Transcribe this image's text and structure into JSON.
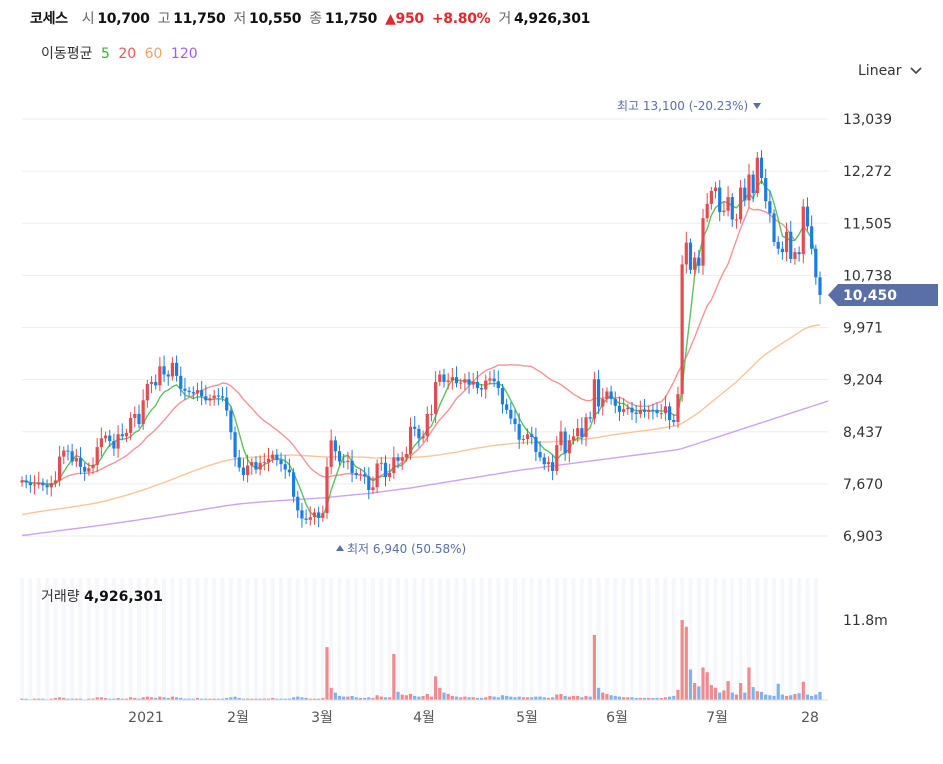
{
  "header": {
    "name": "코세스",
    "open_label": "시",
    "open": "10,700",
    "high_label": "고",
    "high": "11,750",
    "low_label": "저",
    "low": "10,550",
    "close_label": "종",
    "close": "11,750",
    "change": "▲950",
    "change_pct": "+8.80%",
    "volume_label": "거",
    "volume": "4,926,301"
  },
  "ma_legend": {
    "label": "이동평균",
    "items": [
      {
        "period": "5",
        "color": "#3caf3c"
      },
      {
        "period": "20",
        "color": "#f0585c"
      },
      {
        "period": "60",
        "color": "#f4a261"
      },
      {
        "period": "120",
        "color": "#a35bf0"
      }
    ]
  },
  "scale_selector": {
    "value": "Linear",
    "icon": "chevron-down-icon"
  },
  "volume_panel": {
    "label": "거래량",
    "value": "4,926,301",
    "tick": "11.8m"
  },
  "colors": {
    "up": "#e34b4f",
    "down": "#1c7ce6",
    "badge": "#5a6fa6",
    "grid": "#eeeeee"
  },
  "chart_data": {
    "type": "candlestick",
    "y_ticks": [
      "13,039",
      "12,272",
      "11,505",
      "10,738",
      "9,971",
      "9,204",
      "8,437",
      "7,670",
      "6,903"
    ],
    "y_range": [
      6903,
      13039
    ],
    "x_ticks": [
      "2021",
      "2월",
      "3월",
      "4월",
      "5월",
      "6월",
      "7월",
      "28"
    ],
    "last_price_badge": "10,450",
    "high_marker": {
      "label": "최고",
      "value": "13,100 (-20.23%)"
    },
    "low_marker": {
      "label": "최저",
      "value": "6,940 (50.58%)"
    },
    "close_series": [
      7720,
      7690,
      7650,
      7660,
      7690,
      7650,
      7620,
      7680,
      7720,
      8070,
      8160,
      8150,
      8000,
      8050,
      7920,
      7850,
      7900,
      7950,
      8210,
      8340,
      8380,
      8300,
      8190,
      8400,
      8370,
      8420,
      8640,
      8700,
      8550,
      8900,
      9140,
      9170,
      9120,
      9400,
      9280,
      9250,
      9450,
      9260,
      9070,
      9040,
      9020,
      9000,
      9050,
      8960,
      8900,
      8930,
      8970,
      8960,
      8940,
      8750,
      8430,
      8060,
      7910,
      7800,
      7940,
      7990,
      7880,
      7980,
      7990,
      8040,
      8100,
      8020,
      7960,
      7880,
      7840,
      7480,
      7280,
      7160,
      7140,
      7180,
      7250,
      7170,
      7240,
      7920,
      8310,
      8150,
      8000,
      7990,
      8010,
      7830,
      7800,
      7810,
      7780,
      7580,
      7620,
      7970,
      7980,
      7770,
      7830,
      8060,
      8010,
      8060,
      8110,
      8510,
      8480,
      8340,
      8370,
      8700,
      8700,
      9170,
      9280,
      9170,
      9190,
      9240,
      9150,
      9160,
      9210,
      9130,
      9170,
      9080,
      9060,
      9190,
      9220,
      9180,
      9080,
      8840,
      8760,
      8630,
      8550,
      8320,
      8330,
      8400,
      8360,
      8140,
      8060,
      7960,
      7990,
      7860,
      8240,
      8440,
      8120,
      8310,
      8370,
      8490,
      8360,
      8650,
      8630,
      9210,
      8810,
      8920,
      9030,
      8920,
      8820,
      8730,
      8770,
      8790,
      8720,
      8700,
      8760,
      8730,
      8760,
      8750,
      8710,
      8710,
      8810,
      8610,
      8580,
      8990,
      10900,
      11220,
      10820,
      11000,
      10880,
      11580,
      11790,
      11980,
      12030,
      11670,
      11690,
      11890,
      11560,
      11560,
      12030,
      11840,
      12220,
      11950,
      12470,
      12170,
      11830,
      11650,
      11230,
      11130,
      11080,
      11380,
      10980,
      11080,
      11050,
      11750,
      11460,
      11130,
      10710,
      10450
    ],
    "ma5": [
      7720,
      7705,
      7687,
      7680,
      7682,
      7672,
      7662,
      7658,
      7672,
      7752,
      7850,
      7944,
      8022,
      8086,
      8058,
      7994,
      7944,
      7934,
      7966,
      8050,
      8156,
      8236,
      8284,
      8324,
      8328,
      8336,
      8364,
      8426,
      8456,
      8562,
      8670,
      8760,
      8822,
      8946,
      9022,
      9052,
      9100,
      9128,
      9060,
      8976,
      8954,
      8926,
      8950,
      8952,
      8922,
      8904,
      8918,
      8922,
      8921,
      8885,
      8810,
      8628,
      8410,
      8190,
      8028,
      7940,
      7904,
      7910,
      7954,
      7984,
      8030,
      8038,
      8036,
      8008,
      7952,
      7832,
      7690,
      7536,
      7370,
      7252,
      7202,
      7180,
      7194,
      7352,
      7578,
      7758,
      7928,
      8074,
      8092,
      7998,
      7918,
      7890,
      7844,
      7760,
      7716,
      7752,
      7780,
      7784,
      7834,
      7922,
      7930,
      7946,
      8014,
      8150,
      8236,
      8302,
      8364,
      8472,
      8520,
      8666,
      8830,
      8966,
      9102,
      9210,
      9206,
      9184,
      9190,
      9176,
      9170,
      9144,
      9126,
      9128,
      9146,
      9146,
      9146,
      9114,
      9016,
      8898,
      8774,
      8640,
      8528,
      8446,
      8392,
      8316,
      8252,
      8180,
      8150,
      8096,
      8022,
      8100,
      8122,
      8186,
      8298,
      8346,
      8338,
      8436,
      8500,
      8680,
      8732,
      8844,
      8920,
      8978,
      8900,
      8854,
      8854,
      8806,
      8766,
      8742,
      8748,
      8760,
      8744,
      8740,
      8752,
      8740,
      8746,
      8734,
      8678,
      8688,
      9078,
      9658,
      10184,
      10742,
      11018,
      11296,
      11422,
      11622,
      11734,
      11788,
      11824,
      11808,
      11758,
      11732,
      11808,
      11856,
      11946,
      11862,
      12042,
      12130,
      12028,
      11982,
      11800,
      11566,
      11314,
      11286,
      11248,
      11256,
      11342,
      11466,
      11382,
      11280,
      11026
    ],
    "ma20": [
      7720,
      7705,
      7690,
      7683,
      7684,
      7678,
      7671,
      7672,
      7677,
      7716,
      7755,
      7787,
      7803,
      7820,
      7826,
      7826,
      7830,
      7836,
      7859,
      7887,
      7920,
      7951,
      7977,
      8014,
      8048,
      8086,
      8137,
      8190,
      8232,
      8294,
      8363,
      8414,
      8470,
      8538,
      8606,
      8676,
      8753,
      8818,
      8872,
      8907,
      8939,
      8974,
      9017,
      9045,
      9071,
      9097,
      9113,
      9126,
      9154,
      9146,
      9111,
      9055,
      8994,
      8914,
      8847,
      8784,
      8713,
      8649,
      8597,
      8556,
      8509,
      8461,
      8413,
      8359,
      8306,
      8235,
      8150,
      8073,
      7983,
      7905,
      7852,
      7810,
      7780,
      7767,
      7785,
      7793,
      7801,
      7812,
      7822,
      7817,
      7810,
      7799,
      7789,
      7761,
      7738,
      7762,
      7797,
      7828,
      7862,
      7906,
      7944,
      7988,
      8031,
      8074,
      8136,
      8189,
      8258,
      8353,
      8439,
      8530,
      8614,
      8681,
      8750,
      8833,
      8926,
      8985,
      9046,
      9114,
      9173,
      9240,
      9293,
      9339,
      9362,
      9387,
      9417,
      9420,
      9418,
      9425,
      9417,
      9418,
      9407,
      9403,
      9395,
      9356,
      9320,
      9276,
      9227,
      9190,
      9163,
      9131,
      9083,
      9040,
      8990,
      8957,
      8917,
      8898,
      8892,
      8930,
      8924,
      8932,
      8937,
      8936,
      8930,
      8944,
      8917,
      8872,
      8848,
      8819,
      8811,
      8813,
      8814,
      8833,
      8866,
      8878,
      8942,
      9058,
      9172,
      9307,
      9420,
      9538,
      9678,
      9831,
      9986,
      10143,
      10289,
      10379,
      10517,
      10666,
      10795,
      10906,
      11082,
      11255,
      11430,
      11580,
      11734,
      11703,
      11707,
      11695,
      11670,
      11634,
      11574,
      11527,
      11491,
      11427,
      11340,
      11251
    ],
    "ma60": [
      7220,
      7230,
      7240,
      7250,
      7260,
      7270,
      7280,
      7288,
      7296,
      7304,
      7312,
      7320,
      7330,
      7340,
      7350,
      7360,
      7370,
      7380,
      7392,
      7406,
      7420,
      7436,
      7452,
      7468,
      7486,
      7504,
      7522,
      7542,
      7562,
      7582,
      7602,
      7624,
      7646,
      7668,
      7690,
      7714,
      7738,
      7762,
      7786,
      7810,
      7834,
      7858,
      7880,
      7902,
      7924,
      7944,
      7964,
      7982,
      8000,
      8014,
      8026,
      8036,
      8044,
      8050,
      8056,
      8062,
      8066,
      8070,
      8074,
      8078,
      8082,
      8086,
      8090,
      8092,
      8094,
      8094,
      8092,
      8088,
      8084,
      8080,
      8076,
      8072,
      8068,
      8066,
      8066,
      8066,
      8068,
      8068,
      8068,
      8068,
      8066,
      8064,
      8062,
      8058,
      8054,
      8052,
      8050,
      8050,
      8050,
      8050,
      8050,
      8052,
      8054,
      8058,
      8062,
      8066,
      8070,
      8076,
      8082,
      8090,
      8098,
      8108,
      8118,
      8128,
      8138,
      8150,
      8162,
      8174,
      8186,
      8196,
      8206,
      8216,
      8226,
      8234,
      8242,
      8250,
      8256,
      8262,
      8266,
      8270,
      8274,
      8278,
      8280,
      8282,
      8284,
      8286,
      8288,
      8290,
      8292,
      8296,
      8300,
      8304,
      8310,
      8316,
      8322,
      8328,
      8336,
      8346,
      8356,
      8366,
      8376,
      8386,
      8396,
      8406,
      8414,
      8422,
      8430,
      8438,
      8446,
      8454,
      8462,
      8470,
      8480,
      8490,
      8500,
      8510,
      8520,
      8532,
      8560,
      8600,
      8640,
      8680,
      8720,
      8770,
      8820,
      8870,
      8920,
      8970,
      9020,
      9070,
      9120,
      9170,
      9230,
      9290,
      9350,
      9410,
      9470,
      9530,
      9580,
      9620,
      9660,
      9700,
      9740,
      9780,
      9820,
      9860,
      9900,
      9940,
      9970,
      9990,
      10000,
      10010
    ],
    "ma120": [
      6910,
      6918,
      6926,
      6934,
      6942,
      6950,
      6958,
      6966,
      6974,
      6982,
      6990,
      6998,
      7006,
      7014,
      7022,
      7030,
      7038,
      7046,
      7054,
      7062,
      7070,
      7079,
      7088,
      7097,
      7106,
      7115,
      7124,
      7133,
      7142,
      7151,
      7160,
      7170,
      7180,
      7190,
      7200,
      7210,
      7220,
      7230,
      7240,
      7250,
      7260,
      7270,
      7280,
      7290,
      7300,
      7310,
      7320,
      7330,
      7340,
      7350,
      7358,
      7366,
      7374,
      7380,
      7386,
      7392,
      7398,
      7404,
      7408,
      7412,
      7416,
      7420,
      7424,
      7428,
      7432,
      7436,
      7440,
      7444,
      7448,
      7452,
      7456,
      7460,
      7464,
      7470,
      7476,
      7482,
      7488,
      7494,
      7500,
      7506,
      7512,
      7518,
      7524,
      7530,
      7538,
      7546,
      7554,
      7562,
      7570,
      7578,
      7586,
      7594,
      7602,
      7610,
      7620,
      7630,
      7640,
      7650,
      7660,
      7670,
      7680,
      7690,
      7700,
      7710,
      7720,
      7730,
      7740,
      7750,
      7760,
      7770,
      7780,
      7790,
      7800,
      7810,
      7820,
      7830,
      7840,
      7850,
      7860,
      7870,
      7878,
      7886,
      7894,
      7902,
      7910,
      7918,
      7926,
      7934,
      7942,
      7950,
      7958,
      7966,
      7974,
      7982,
      7990,
      7998,
      8006,
      8014,
      8022,
      8030,
      8038,
      8046,
      8054,
      8062,
      8070,
      8078,
      8086,
      8094,
      8102,
      8110,
      8118,
      8126,
      8134,
      8142,
      8150,
      8158,
      8166,
      8174,
      8190,
      8210,
      8230,
      8250,
      8270,
      8290,
      8310,
      8330,
      8350,
      8370,
      8390,
      8410,
      8430,
      8450,
      8470,
      8490,
      8510,
      8530,
      8550,
      8570,
      8590,
      8610,
      8630,
      8650,
      8670,
      8690,
      8710,
      8730,
      8750,
      8770,
      8790,
      8810,
      8830,
      8850,
      8870,
      8890
    ],
    "volume_series": [
      0.2,
      0.2,
      0.1,
      0.2,
      0.2,
      0.2,
      0.1,
      0.2,
      0.3,
      0.4,
      0.3,
      0.2,
      0.2,
      0.2,
      0.2,
      0.1,
      0.2,
      0.2,
      0.4,
      0.4,
      0.3,
      0.2,
      0.2,
      0.3,
      0.2,
      0.2,
      0.4,
      0.3,
      0.2,
      0.4,
      0.5,
      0.4,
      0.3,
      0.5,
      0.4,
      0.3,
      0.5,
      0.4,
      0.3,
      0.2,
      0.2,
      0.2,
      0.3,
      0.2,
      0.2,
      0.2,
      0.2,
      0.2,
      0.2,
      0.3,
      0.4,
      0.5,
      0.3,
      0.2,
      0.2,
      0.2,
      0.2,
      0.2,
      0.2,
      0.2,
      0.3,
      0.2,
      0.2,
      0.2,
      0.2,
      0.4,
      0.5,
      0.4,
      0.3,
      0.2,
      0.2,
      0.2,
      0.3,
      7.8,
      1.8,
      1.1,
      0.6,
      0.5,
      0.5,
      0.6,
      0.4,
      0.3,
      0.3,
      0.4,
      0.3,
      0.7,
      0.5,
      0.4,
      0.4,
      6.8,
      1.2,
      0.8,
      0.7,
      0.9,
      0.6,
      0.5,
      0.6,
      0.9,
      0.5,
      3.5,
      1.8,
      1.1,
      0.9,
      0.6,
      0.5,
      0.4,
      0.5,
      0.4,
      0.4,
      0.3,
      0.3,
      0.4,
      0.6,
      0.5,
      0.4,
      0.7,
      0.6,
      0.5,
      0.4,
      0.5,
      0.4,
      0.4,
      0.4,
      0.5,
      0.5,
      0.4,
      0.3,
      0.4,
      0.8,
      0.9,
      0.6,
      0.5,
      0.6,
      0.6,
      0.4,
      0.6,
      0.5,
      9.6,
      1.8,
      1.1,
      0.9,
      0.7,
      0.6,
      0.5,
      0.4,
      0.4,
      0.4,
      0.3,
      0.3,
      0.3,
      0.3,
      0.3,
      0.3,
      0.3,
      0.4,
      0.5,
      0.6,
      1.5,
      11.8,
      10.8,
      4.5,
      2.5,
      2.0,
      4.8,
      4.1,
      2.2,
      1.8,
      1.1,
      1.4,
      2.8,
      1.1,
      0.8,
      2.5,
      1.1,
      4.8,
      1.9,
      1.3,
      1.2,
      0.8,
      0.7,
      0.6,
      2.4,
      0.8,
      0.6,
      0.7,
      0.9,
      1.0,
      2.7,
      0.8,
      0.6,
      0.8,
      1.2
    ]
  }
}
